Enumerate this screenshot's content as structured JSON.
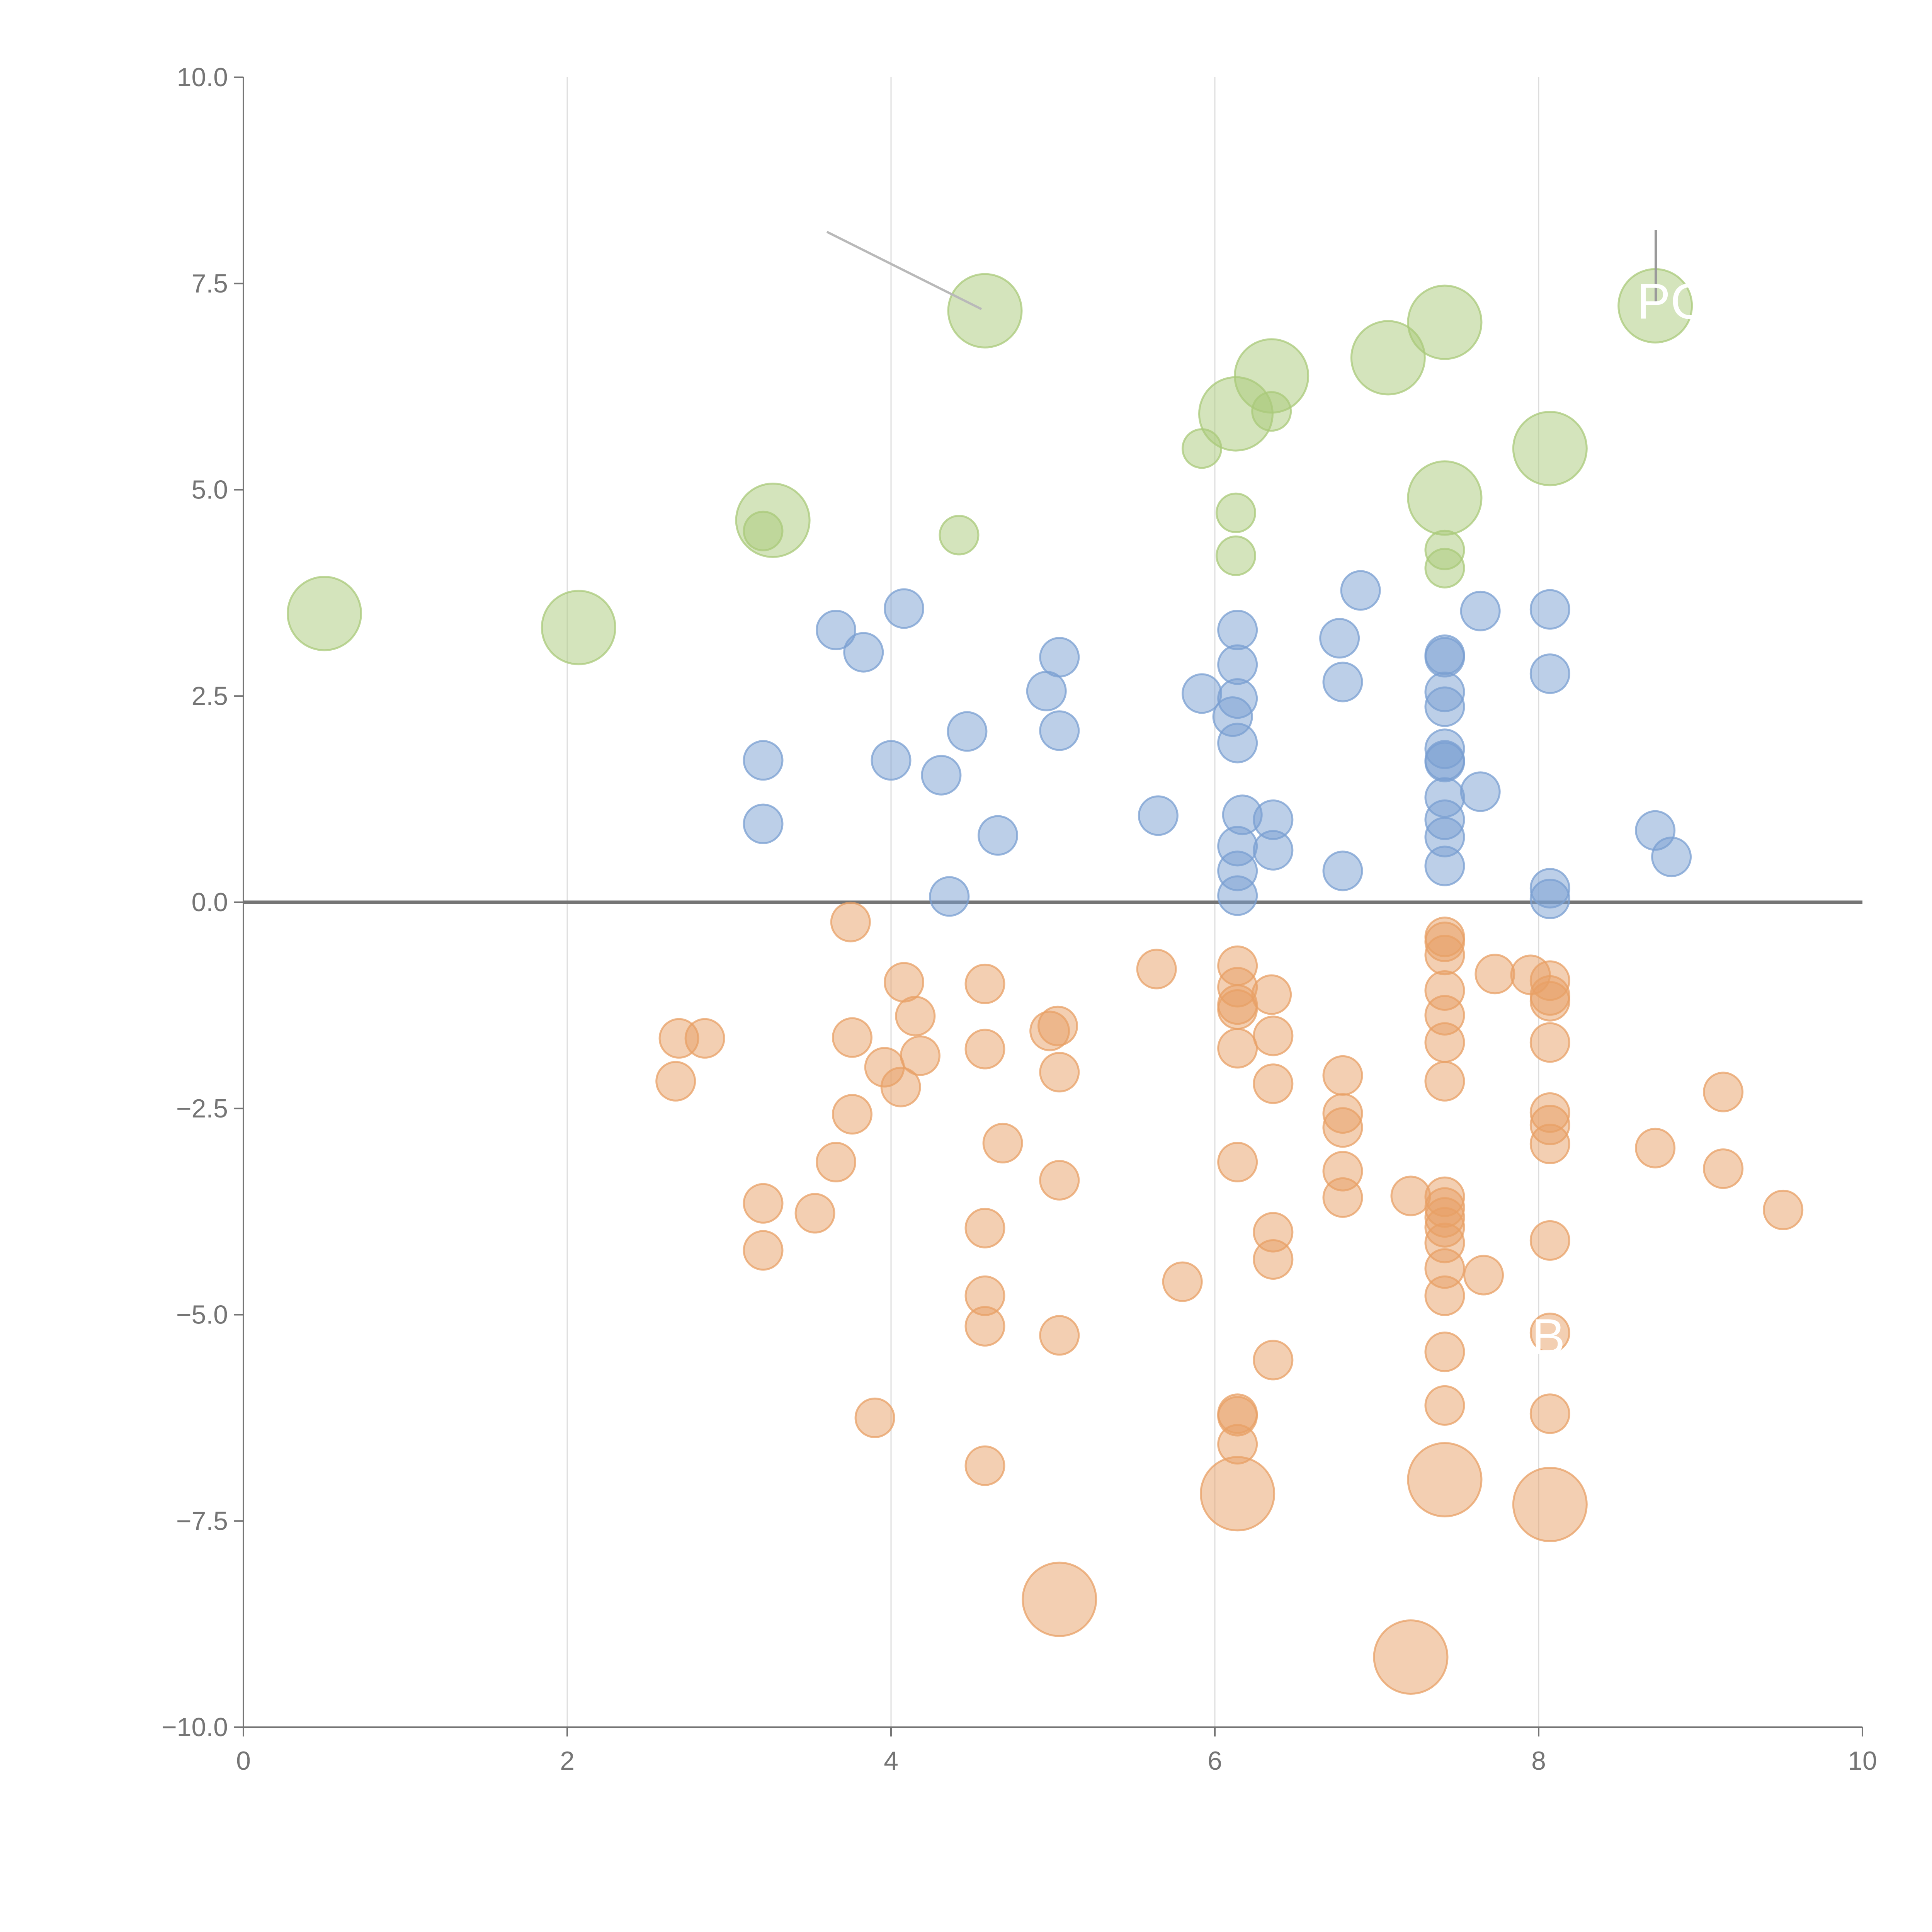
{
  "chart_data": {
    "type": "scatter",
    "title": "",
    "xlabel": "",
    "ylabel": "",
    "xlim": [
      0,
      10
    ],
    "ylim": [
      -10,
      10
    ],
    "x_ticks": [
      "0",
      "2",
      "4",
      "6",
      "8",
      "10"
    ],
    "y_ticks": [
      "10.0",
      "7.5",
      "5.0",
      "2.5",
      "0.0",
      "−2.5",
      "−5.0",
      "−7.5",
      "−10.0"
    ],
    "x_tick_values": [
      0,
      2,
      4,
      6,
      8,
      10
    ],
    "y_tick_values": [
      10,
      7.5,
      5,
      2.5,
      0,
      -2.5,
      -5,
      -7.5,
      -10
    ],
    "vertical_grid": [
      2,
      4,
      6,
      8
    ],
    "zero_line": 0,
    "colors": {
      "blue": "#7a9fd1",
      "orange": "#e8a066",
      "green": "#a9c97a",
      "axis": "#757575",
      "grid": "#dddddd"
    },
    "annotation_labels": [
      {
        "text": "PC",
        "x": 8.75,
        "y": 7.3,
        "series": "green"
      },
      {
        "text": "B",
        "x": 8.1,
        "y": -5.25,
        "series": "orange"
      }
    ],
    "series": [
      {
        "name": "green",
        "color": "#a9c97a",
        "points": [
          {
            "x": 0.5,
            "y": 3.5,
            "size": 3
          },
          {
            "x": 2.07,
            "y": 3.33,
            "size": 3
          },
          {
            "x": 3.27,
            "y": 4.63,
            "size": 3
          },
          {
            "x": 3.21,
            "y": 4.5,
            "size": 1
          },
          {
            "x": 4.42,
            "y": 4.45,
            "size": 1
          },
          {
            "x": 4.58,
            "y": 7.17,
            "size": 3
          },
          {
            "x": 5.92,
            "y": 5.5,
            "size": 1
          },
          {
            "x": 6.13,
            "y": 5.92,
            "size": 3
          },
          {
            "x": 6.35,
            "y": 6.38,
            "size": 3
          },
          {
            "x": 6.35,
            "y": 5.95,
            "size": 1
          },
          {
            "x": 6.13,
            "y": 4.72,
            "size": 1
          },
          {
            "x": 6.13,
            "y": 4.2,
            "size": 1
          },
          {
            "x": 7.07,
            "y": 6.6,
            "size": 3
          },
          {
            "x": 7.42,
            "y": 7.03,
            "size": 3
          },
          {
            "x": 7.42,
            "y": 4.9,
            "size": 3
          },
          {
            "x": 7.42,
            "y": 4.27,
            "size": 1
          },
          {
            "x": 7.42,
            "y": 4.05,
            "size": 1
          },
          {
            "x": 8.07,
            "y": 5.5,
            "size": 3
          },
          {
            "x": 8.72,
            "y": 7.23,
            "size": 3
          }
        ]
      },
      {
        "name": "blue",
        "color": "#7a9fd1",
        "points": [
          {
            "x": 3.21,
            "y": 1.72
          },
          {
            "x": 3.21,
            "y": 0.95
          },
          {
            "x": 3.66,
            "y": 3.3
          },
          {
            "x": 3.83,
            "y": 3.03
          },
          {
            "x": 4.0,
            "y": 1.72
          },
          {
            "x": 4.08,
            "y": 3.56
          },
          {
            "x": 4.31,
            "y": 1.54
          },
          {
            "x": 4.36,
            "y": 0.07
          },
          {
            "x": 4.47,
            "y": 2.07
          },
          {
            "x": 4.66,
            "y": 0.81
          },
          {
            "x": 4.96,
            "y": 2.56
          },
          {
            "x": 5.04,
            "y": 2.97
          },
          {
            "x": 5.04,
            "y": 2.08
          },
          {
            "x": 5.65,
            "y": 1.05
          },
          {
            "x": 5.92,
            "y": 2.53
          },
          {
            "x": 6.11,
            "y": 2.25
          },
          {
            "x": 6.14,
            "y": 3.3
          },
          {
            "x": 6.14,
            "y": 2.88
          },
          {
            "x": 6.14,
            "y": 2.47
          },
          {
            "x": 6.14,
            "y": 1.93
          },
          {
            "x": 6.17,
            "y": 1.06
          },
          {
            "x": 6.14,
            "y": 0.68
          },
          {
            "x": 6.14,
            "y": 0.38
          },
          {
            "x": 6.14,
            "y": 0.08
          },
          {
            "x": 6.36,
            "y": 1.0
          },
          {
            "x": 6.36,
            "y": 0.63
          },
          {
            "x": 6.77,
            "y": 3.2
          },
          {
            "x": 6.79,
            "y": 2.67
          },
          {
            "x": 6.79,
            "y": 0.38
          },
          {
            "x": 6.9,
            "y": 3.78
          },
          {
            "x": 7.42,
            "y": 3.0
          },
          {
            "x": 7.42,
            "y": 2.97
          },
          {
            "x": 7.42,
            "y": 2.55
          },
          {
            "x": 7.42,
            "y": 2.37
          },
          {
            "x": 7.42,
            "y": 1.86
          },
          {
            "x": 7.42,
            "y": 1.72
          },
          {
            "x": 7.42,
            "y": 1.7
          },
          {
            "x": 7.42,
            "y": 1.27
          },
          {
            "x": 7.42,
            "y": 1.0
          },
          {
            "x": 7.42,
            "y": 0.79
          },
          {
            "x": 7.42,
            "y": 0.44
          },
          {
            "x": 7.64,
            "y": 3.53
          },
          {
            "x": 7.64,
            "y": 1.34
          },
          {
            "x": 8.07,
            "y": 3.55
          },
          {
            "x": 8.07,
            "y": 2.77
          },
          {
            "x": 8.07,
            "y": 0.17
          },
          {
            "x": 8.07,
            "y": 0.04
          },
          {
            "x": 8.72,
            "y": 0.87
          },
          {
            "x": 8.82,
            "y": 0.55
          }
        ]
      },
      {
        "name": "orange",
        "color": "#e8a066",
        "points": [
          {
            "x": 2.69,
            "y": -1.65
          },
          {
            "x": 2.85,
            "y": -1.65
          },
          {
            "x": 2.67,
            "y": -2.17
          },
          {
            "x": 3.21,
            "y": -3.65
          },
          {
            "x": 3.21,
            "y": -4.22
          },
          {
            "x": 3.53,
            "y": -3.77
          },
          {
            "x": 3.66,
            "y": -3.15
          },
          {
            "x": 3.75,
            "y": -0.24
          },
          {
            "x": 3.76,
            "y": -1.64
          },
          {
            "x": 3.76,
            "y": -2.57
          },
          {
            "x": 3.9,
            "y": -6.25
          },
          {
            "x": 3.96,
            "y": -2.0
          },
          {
            "x": 4.06,
            "y": -2.24
          },
          {
            "x": 4.08,
            "y": -0.97
          },
          {
            "x": 4.15,
            "y": -1.38
          },
          {
            "x": 4.18,
            "y": -1.86
          },
          {
            "x": 4.58,
            "y": -0.99
          },
          {
            "x": 4.58,
            "y": -1.78
          },
          {
            "x": 4.58,
            "y": -3.95
          },
          {
            "x": 4.58,
            "y": -4.77
          },
          {
            "x": 4.58,
            "y": -5.14
          },
          {
            "x": 4.58,
            "y": -6.83
          },
          {
            "x": 4.69,
            "y": -2.92
          },
          {
            "x": 4.98,
            "y": -1.56
          },
          {
            "x": 5.03,
            "y": -1.5
          },
          {
            "x": 5.04,
            "y": -2.06
          },
          {
            "x": 5.04,
            "y": -3.37
          },
          {
            "x": 5.04,
            "y": -5.25
          },
          {
            "x": 5.04,
            "y": -8.45,
            "size": 3
          },
          {
            "x": 5.64,
            "y": -0.81
          },
          {
            "x": 5.8,
            "y": -4.6
          },
          {
            "x": 6.14,
            "y": -0.77
          },
          {
            "x": 6.14,
            "y": -1.03
          },
          {
            "x": 6.14,
            "y": -1.24
          },
          {
            "x": 6.14,
            "y": -1.3
          },
          {
            "x": 6.14,
            "y": -1.77
          },
          {
            "x": 6.14,
            "y": -3.15
          },
          {
            "x": 6.14,
            "y": -6.2
          },
          {
            "x": 6.14,
            "y": -6.23
          },
          {
            "x": 6.14,
            "y": -6.57
          },
          {
            "x": 6.14,
            "y": -7.17,
            "size": 3
          },
          {
            "x": 6.35,
            "y": -1.12
          },
          {
            "x": 6.36,
            "y": -1.62
          },
          {
            "x": 6.36,
            "y": -2.2
          },
          {
            "x": 6.36,
            "y": -4.0
          },
          {
            "x": 6.36,
            "y": -4.33
          },
          {
            "x": 6.36,
            "y": -5.55
          },
          {
            "x": 6.79,
            "y": -2.1
          },
          {
            "x": 6.79,
            "y": -2.56
          },
          {
            "x": 6.79,
            "y": -2.73
          },
          {
            "x": 6.79,
            "y": -3.26
          },
          {
            "x": 6.79,
            "y": -3.58
          },
          {
            "x": 7.21,
            "y": -3.56
          },
          {
            "x": 7.21,
            "y": -9.15,
            "size": 3
          },
          {
            "x": 7.42,
            "y": -0.42
          },
          {
            "x": 7.42,
            "y": -0.48
          },
          {
            "x": 7.42,
            "y": -0.64
          },
          {
            "x": 7.42,
            "y": -1.07
          },
          {
            "x": 7.42,
            "y": -1.37
          },
          {
            "x": 7.42,
            "y": -1.7
          },
          {
            "x": 7.42,
            "y": -2.17
          },
          {
            "x": 7.42,
            "y": -3.57
          },
          {
            "x": 7.42,
            "y": -3.7
          },
          {
            "x": 7.42,
            "y": -3.82
          },
          {
            "x": 7.42,
            "y": -3.94
          },
          {
            "x": 7.42,
            "y": -4.13
          },
          {
            "x": 7.42,
            "y": -4.44
          },
          {
            "x": 7.42,
            "y": -4.77
          },
          {
            "x": 7.42,
            "y": -5.45
          },
          {
            "x": 7.42,
            "y": -6.1
          },
          {
            "x": 7.42,
            "y": -7.0,
            "size": 3
          },
          {
            "x": 7.66,
            "y": -4.52
          },
          {
            "x": 7.73,
            "y": -0.87
          },
          {
            "x": 7.95,
            "y": -0.88
          },
          {
            "x": 8.07,
            "y": -0.95
          },
          {
            "x": 8.07,
            "y": -1.13
          },
          {
            "x": 8.07,
            "y": -1.2
          },
          {
            "x": 8.07,
            "y": -1.7
          },
          {
            "x": 8.07,
            "y": -2.55
          },
          {
            "x": 8.07,
            "y": -2.7
          },
          {
            "x": 8.07,
            "y": -2.93
          },
          {
            "x": 8.07,
            "y": -4.1
          },
          {
            "x": 8.07,
            "y": -5.22
          },
          {
            "x": 8.07,
            "y": -6.2
          },
          {
            "x": 8.07,
            "y": -7.3,
            "size": 3
          },
          {
            "x": 8.72,
            "y": -2.98
          },
          {
            "x": 9.14,
            "y": -2.3
          },
          {
            "x": 9.14,
            "y": -3.23
          },
          {
            "x": 9.51,
            "y": -3.73
          }
        ]
      }
    ]
  }
}
